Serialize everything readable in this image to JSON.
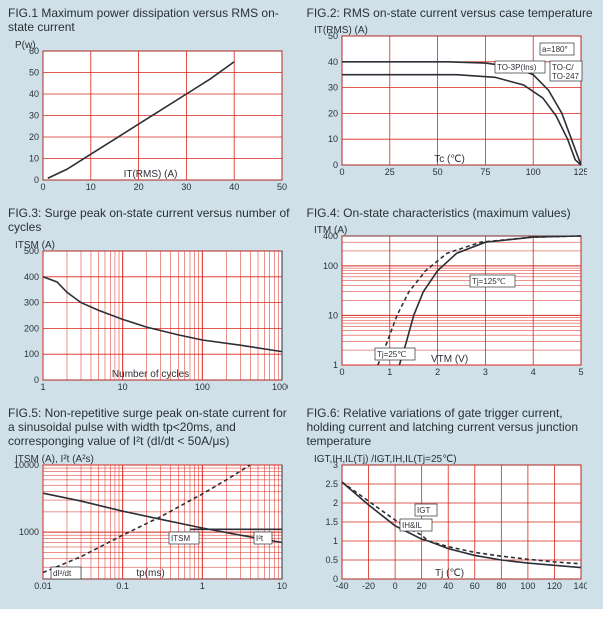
{
  "page": {
    "background_color": "#cfe0e8",
    "plot_background": "#ffffff",
    "grid_color": "#d9261c",
    "axis_color": "#2b2f36",
    "line_color": "#2b2f36",
    "line_color2": "#2b2f36",
    "font_family": "Arial",
    "title_fontsize": 12,
    "tick_fontsize": 9
  },
  "fig1": {
    "title": "FIG.1 Maximum power dissipation versus RMS on-state current",
    "ylabel": "P(w)",
    "xlabel": "IT(RMS) (A)",
    "xlim": [
      0,
      50
    ],
    "xticks": [
      0,
      10,
      20,
      30,
      40,
      50
    ],
    "ylim": [
      0,
      60
    ],
    "yticks": [
      0,
      10,
      20,
      30,
      40,
      50,
      60
    ],
    "curve": [
      [
        1,
        0.8
      ],
      [
        5,
        5
      ],
      [
        10,
        12
      ],
      [
        15,
        19
      ],
      [
        20,
        26
      ],
      [
        25,
        33
      ],
      [
        30,
        40
      ],
      [
        35,
        47
      ],
      [
        40,
        55
      ]
    ]
  },
  "fig2": {
    "title": "FIG.2: RMS on-state current versus case temperature",
    "ylabel": "IT(RMS) (A)",
    "xlabel": "Tc (℃)",
    "xlim": [
      0,
      125
    ],
    "xticks": [
      0,
      25,
      50,
      75,
      100,
      125
    ],
    "ylim": [
      0,
      50
    ],
    "yticks": [
      0,
      10,
      20,
      30,
      40,
      50
    ],
    "note_a": "a=180°",
    "note1": "TO-3P(Ins)",
    "note2": "TO-C/\nTO-247",
    "curve1": [
      [
        0,
        35
      ],
      [
        60,
        35
      ],
      [
        80,
        34
      ],
      [
        95,
        31
      ],
      [
        105,
        26
      ],
      [
        112,
        19
      ],
      [
        118,
        10
      ],
      [
        122,
        2
      ],
      [
        125,
        0
      ]
    ],
    "curve2": [
      [
        0,
        40
      ],
      [
        55,
        40
      ],
      [
        75,
        39.5
      ],
      [
        90,
        38
      ],
      [
        100,
        35
      ],
      [
        108,
        29
      ],
      [
        115,
        20
      ],
      [
        120,
        10
      ],
      [
        125,
        0
      ]
    ]
  },
  "fig3": {
    "title": "FIG.3: Surge peak on-state current versus number of cycles",
    "ylabel": "ITSM (A)",
    "xlabel": "Number of cycles",
    "xlog": true,
    "xlim": [
      1,
      1000
    ],
    "xticks": [
      1,
      10,
      100,
      1000
    ],
    "ylim": [
      0,
      500
    ],
    "yticks": [
      0,
      100,
      200,
      300,
      400,
      500
    ],
    "curve": [
      [
        1,
        400
      ],
      [
        1.5,
        380
      ],
      [
        2,
        340
      ],
      [
        3,
        300
      ],
      [
        5,
        270
      ],
      [
        10,
        235
      ],
      [
        20,
        205
      ],
      [
        50,
        175
      ],
      [
        100,
        155
      ],
      [
        300,
        135
      ],
      [
        1000,
        110
      ]
    ]
  },
  "fig4": {
    "title": "FIG.4: On-state characteristics (maximum values)",
    "ylabel": "ITM (A)",
    "xlabel": "VTM (V)",
    "xlim": [
      0,
      5
    ],
    "xticks": [
      0,
      1,
      2,
      3,
      4,
      5
    ],
    "ylog": true,
    "ylim": [
      1,
      400
    ],
    "yticks": [
      1,
      10,
      100,
      400
    ],
    "note1": "Tj=125℃",
    "note2": "Tj=25℃",
    "curve1": [
      [
        1.2,
        1
      ],
      [
        1.35,
        3
      ],
      [
        1.5,
        10
      ],
      [
        1.7,
        30
      ],
      [
        2.0,
        80
      ],
      [
        2.4,
        180
      ],
      [
        3.0,
        300
      ],
      [
        4.0,
        380
      ],
      [
        5.0,
        400
      ]
    ],
    "curve2": [
      [
        0.75,
        1
      ],
      [
        0.95,
        3
      ],
      [
        1.15,
        10
      ],
      [
        1.4,
        30
      ],
      [
        1.75,
        80
      ],
      [
        2.2,
        180
      ],
      [
        2.9,
        300
      ],
      [
        4.0,
        380
      ],
      [
        5.0,
        400
      ]
    ]
  },
  "fig5": {
    "title": "FIG.5: Non-repetitive surge peak on-state current for a sinusoidal pulse with width tp<20ms, and corresponging value of I²t (dI/dt < 50A/μs)",
    "ylabel": "ITSM (A), I²t (A²s)",
    "xlabel": "tp(ms)",
    "xlog": true,
    "xlim": [
      0.01,
      10
    ],
    "xticks": [
      0.01,
      0.1,
      1,
      10
    ],
    "ylog": true,
    "ylim": [
      200,
      10000
    ],
    "yticks": [
      1000,
      10000
    ],
    "note1": "ITSM",
    "note2": "I²t",
    "note3": "dI²/dt",
    "curve1": [
      [
        0.01,
        3800
      ],
      [
        0.03,
        2900
      ],
      [
        0.1,
        2050
      ],
      [
        0.3,
        1550
      ],
      [
        1,
        1150
      ],
      [
        3,
        900
      ],
      [
        10,
        700
      ]
    ],
    "curve2": [
      [
        0.7,
        1100
      ],
      [
        1,
        1100
      ],
      [
        2,
        1100
      ],
      [
        4,
        1100
      ],
      [
        10,
        1100
      ]
    ],
    "dashed": [
      [
        0.01,
        250
      ],
      [
        0.03,
        430
      ],
      [
        0.1,
        900
      ],
      [
        0.3,
        1700
      ],
      [
        1,
        3700
      ],
      [
        2,
        6000
      ],
      [
        4,
        10000
      ]
    ]
  },
  "fig6": {
    "title": "FIG.6: Relative variations of gate trigger current, holding current and latching current versus junction temperature",
    "ylabel": "IGT,IH,IL(Tj) /IGT,IH,IL(Tj=25℃)",
    "xlabel": "Tj (℃)",
    "xlim": [
      -40,
      140
    ],
    "xticks": [
      -40,
      -20,
      0,
      20,
      40,
      60,
      80,
      100,
      120,
      140
    ],
    "ylim": [
      0,
      3.0
    ],
    "yticks": [
      0,
      0.5,
      1.0,
      1.5,
      2.0,
      2.5,
      3.0
    ],
    "note1": "IGT",
    "note2": "IH&IL",
    "curve1": [
      [
        -40,
        2.55
      ],
      [
        -20,
        2.05
      ],
      [
        0,
        1.55
      ],
      [
        20,
        1.15
      ],
      [
        25,
        1.0
      ],
      [
        40,
        0.85
      ],
      [
        60,
        0.7
      ],
      [
        80,
        0.6
      ],
      [
        100,
        0.52
      ],
      [
        120,
        0.45
      ],
      [
        140,
        0.4
      ]
    ],
    "curve2": [
      [
        -40,
        2.55
      ],
      [
        -20,
        1.95
      ],
      [
        0,
        1.4
      ],
      [
        20,
        1.05
      ],
      [
        25,
        1.0
      ],
      [
        40,
        0.8
      ],
      [
        60,
        0.62
      ],
      [
        80,
        0.5
      ],
      [
        100,
        0.42
      ],
      [
        120,
        0.36
      ],
      [
        140,
        0.3
      ]
    ]
  }
}
